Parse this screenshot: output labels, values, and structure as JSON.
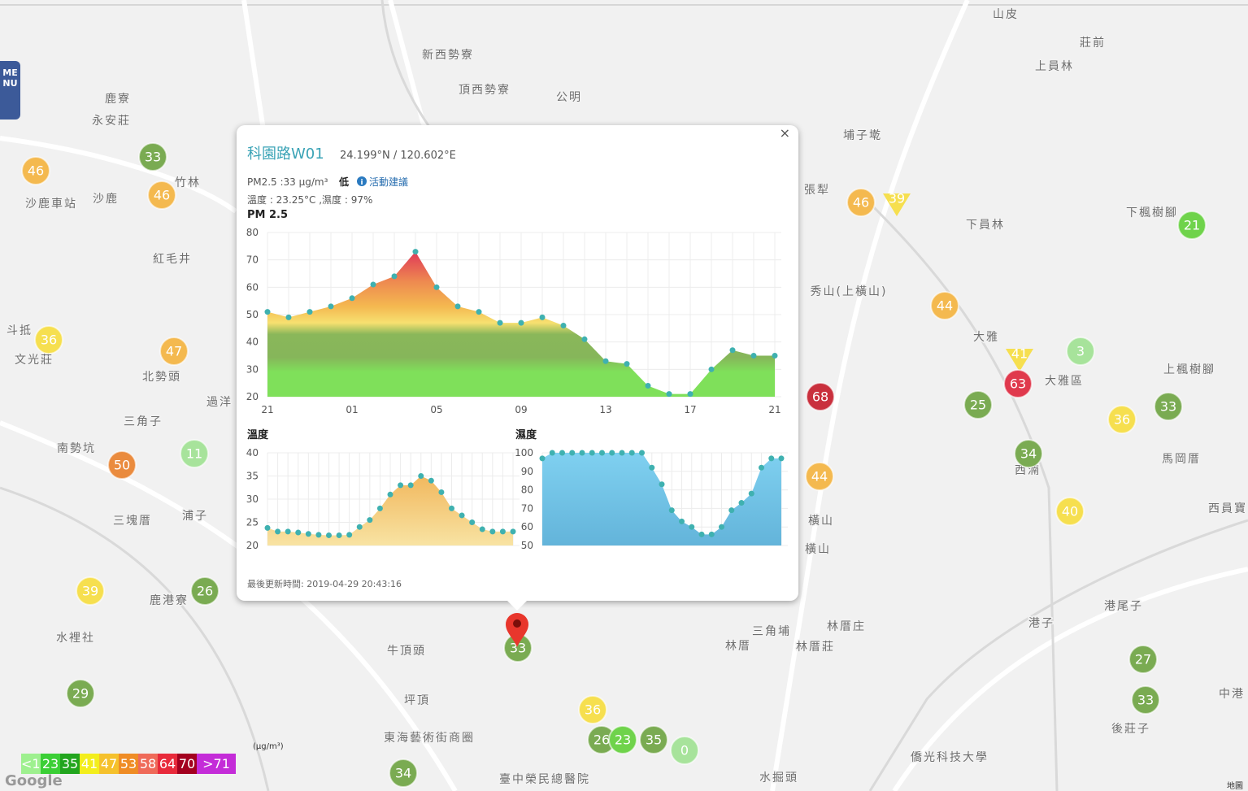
{
  "menu": "MENU",
  "map": {
    "labels": [
      "鹿寮",
      "永安莊",
      "沙鹿車站",
      "沙鹿",
      "竹林",
      "紅毛井",
      "斗抵",
      "文光莊",
      "北勢頭",
      "過洋",
      "三角子",
      "南勢坑",
      "三塊厝",
      "浦子",
      "鹿港寮",
      "水裡社",
      "坪頂",
      "牛頂頭",
      "東海藝術街商圈",
      "新西勢寮",
      "頂西勢寮",
      "公明",
      "山皮",
      "莊前",
      "上員林",
      "埔子墘",
      "張犁",
      "下員林",
      "下楓樹腳",
      "秀山(上橫山)",
      "大雅",
      "大雅區",
      "上楓樹腳",
      "西湳",
      "馬岡厝",
      "西員寶",
      "橫山",
      "橫山",
      "港尾子",
      "港子",
      "三角埔",
      "林厝庄",
      "林厝",
      "林厝莊",
      "後莊子",
      "中港",
      "水掘頭",
      "僑光科技大學",
      "臺中榮民總醫院"
    ],
    "google": "Google",
    "map_link": "地圖"
  },
  "markers": [
    {
      "value": 46,
      "color": "#f4b94f"
    },
    {
      "value": 33,
      "color": "#7aab52"
    },
    {
      "value": 46,
      "color": "#f4b94f"
    },
    {
      "value": 36,
      "color": "#f6df4f"
    },
    {
      "value": 47,
      "color": "#f4b94f"
    },
    {
      "value": 11,
      "color": "#a7e39b"
    },
    {
      "value": 50,
      "color": "#ea8b3e"
    },
    {
      "value": 39,
      "color": "#f6df4f"
    },
    {
      "value": 26,
      "color": "#7aab52"
    },
    {
      "value": 29,
      "color": "#7aab52"
    },
    {
      "value": 46,
      "color": "#f4b94f"
    },
    {
      "value": 39,
      "color": "#f6df4f",
      "shape": "triangle"
    },
    {
      "value": 21,
      "color": "#6fd34b"
    },
    {
      "value": 44,
      "color": "#f4b94f"
    },
    {
      "value": 3,
      "color": "#a7e39b"
    },
    {
      "value": 41,
      "color": "#f6df4f",
      "shape": "triangle"
    },
    {
      "value": 63,
      "color": "#e0394d"
    },
    {
      "value": 68,
      "color": "#c9303d"
    },
    {
      "value": 25,
      "color": "#7aab52"
    },
    {
      "value": 33,
      "color": "#7aab52"
    },
    {
      "value": 36,
      "color": "#f6df4f"
    },
    {
      "value": 34,
      "color": "#7aab52"
    },
    {
      "value": 44,
      "color": "#f4b94f"
    },
    {
      "value": 40,
      "color": "#f6df4f"
    },
    {
      "value": 33,
      "color": "#7aab52"
    },
    {
      "value": 27,
      "color": "#7aab52"
    },
    {
      "value": 33,
      "color": "#7aab52"
    },
    {
      "value": 36,
      "color": "#f6df4f"
    },
    {
      "value": 26,
      "color": "#7aab52"
    },
    {
      "value": 23,
      "color": "#6fd34b"
    },
    {
      "value": 35,
      "color": "#7aab52"
    },
    {
      "value": 0,
      "color": "#a7e39b"
    },
    {
      "value": 34,
      "color": "#7aab52"
    }
  ],
  "legend": {
    "unit": "(μg/m³)",
    "items": [
      {
        "label": "<11",
        "color": "#9ef08f"
      },
      {
        "label": "23",
        "color": "#3bcf36"
      },
      {
        "label": "35",
        "color": "#22a51e"
      },
      {
        "label": "41",
        "color": "#f3ee1c"
      },
      {
        "label": "47",
        "color": "#f5c12c"
      },
      {
        "label": "53",
        "color": "#ef8c25"
      },
      {
        "label": "58",
        "color": "#ef6a59"
      },
      {
        "label": "64",
        "color": "#e82a3b"
      },
      {
        "label": "70",
        "color": "#a3001f"
      },
      {
        "label": ">71",
        "color": "#c42cd8"
      }
    ]
  },
  "popup": {
    "close": "×",
    "title": "科園路W01",
    "coords": "24.199°N / 120.602°E",
    "pm_text": "PM2.5 :33 μg/m³",
    "level": "低",
    "advice": "活動建議",
    "weather": "溫度 : 23.25°C ,濕度 : 97%",
    "updated": "最後更新時間: 2019-04-29 20:43:16"
  },
  "chart_data": [
    {
      "type": "area",
      "title": "PM 2.5",
      "categories": [
        "21",
        null,
        null,
        null,
        "01",
        null,
        null,
        null,
        "05",
        null,
        null,
        null,
        "09",
        null,
        null,
        null,
        "13",
        null,
        null,
        null,
        "17",
        null,
        null,
        null,
        "21"
      ],
      "values": [
        51,
        49,
        51,
        53,
        56,
        61,
        64,
        73,
        60,
        53,
        51,
        47,
        47,
        49,
        46,
        41,
        33,
        32,
        24,
        21,
        21,
        30,
        37,
        35,
        35
      ],
      "ylim": [
        20,
        80
      ],
      "yticks": [
        20,
        30,
        40,
        50,
        60,
        70,
        80
      ],
      "grid": true,
      "point_color": "#3fb1b0"
    },
    {
      "type": "area",
      "title": "溫度",
      "values": [
        23.8,
        23,
        23,
        22.8,
        22.5,
        22.3,
        22.2,
        22.2,
        22.3,
        24,
        25.5,
        28,
        31,
        33,
        33,
        35,
        34,
        31.5,
        28,
        26.5,
        25,
        23.5,
        23,
        23,
        23
      ],
      "ylim": [
        20,
        40
      ],
      "yticks": [
        20,
        25,
        30,
        35,
        40
      ],
      "grid": true,
      "point_color": "#3fb1b0"
    },
    {
      "type": "area",
      "title": "濕度",
      "values": [
        97,
        100,
        100,
        100,
        100,
        100,
        100,
        100,
        100,
        100,
        100,
        92,
        83,
        69,
        63,
        60,
        56,
        56,
        60,
        69,
        73,
        78,
        92,
        97,
        97
      ],
      "ylim": [
        50,
        100
      ],
      "yticks": [
        50,
        60,
        70,
        80,
        90,
        100
      ],
      "grid": true,
      "point_color": "#3fb1b0"
    }
  ]
}
